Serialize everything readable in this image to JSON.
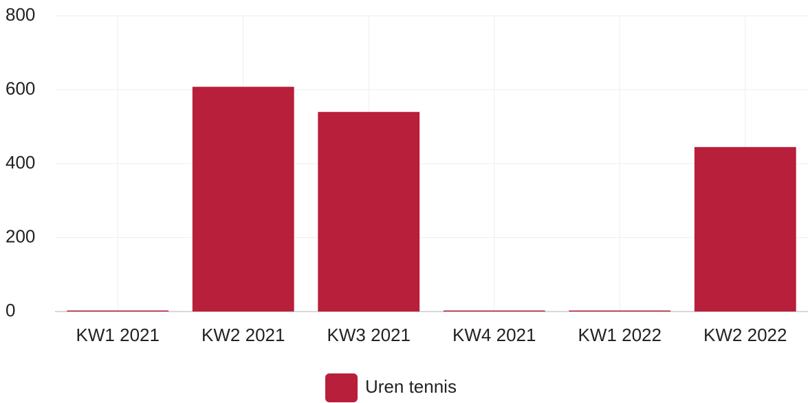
{
  "chart_data": {
    "type": "bar",
    "categories": [
      "KW1 2021",
      "KW2 2021",
      "KW3 2021",
      "KW4 2021",
      "KW1 2022",
      "KW2 2022"
    ],
    "series": [
      {
        "name": "Uren tennis",
        "color": "#b81f3a",
        "values": [
          0,
          608,
          540,
          0,
          0,
          445
        ]
      }
    ],
    "ylim": [
      0,
      800
    ],
    "yticks": [
      0,
      200,
      400,
      600,
      800
    ],
    "grid": true,
    "legend": "bottom"
  }
}
